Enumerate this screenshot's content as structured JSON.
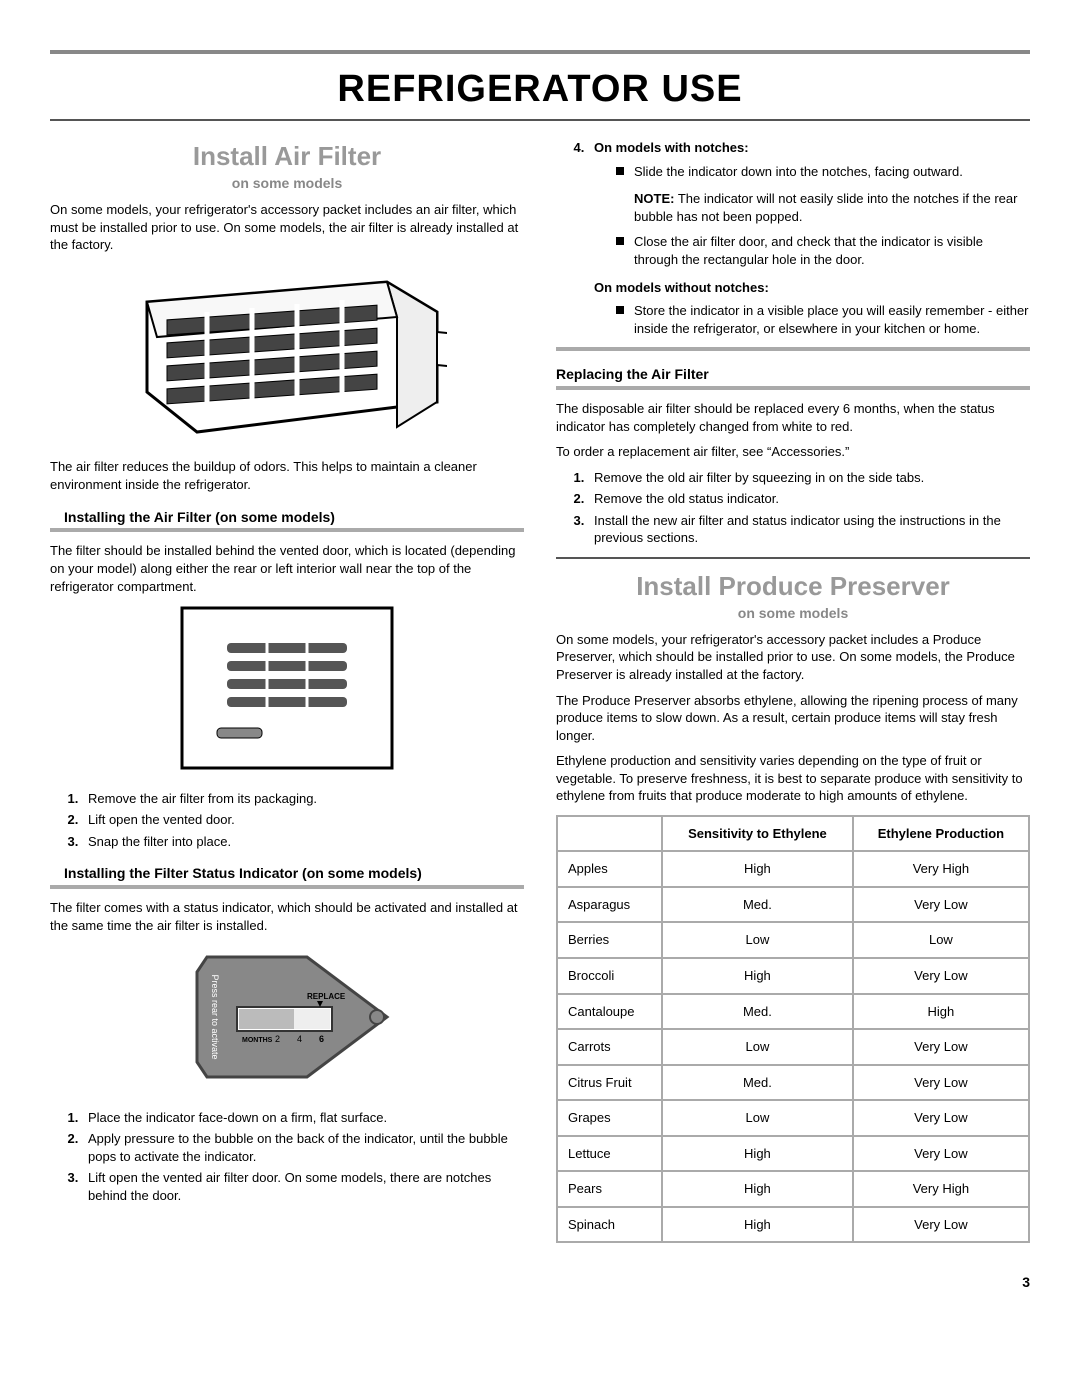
{
  "page_number": "3",
  "heading": "REFRIGERATOR USE",
  "left": {
    "h2": "Install Air Filter",
    "sub": "on some models",
    "intro": "On some models, your refrigerator's accessory packet includes an air filter, which must be installed prior to use. On some models, the air filter is already installed at the factory.",
    "caption": "The air filter reduces the buildup of odors. This helps to maintain a cleaner environment inside the refrigerator.",
    "sec1_title": "Installing the Air Filter (on some models)",
    "sec1_p": "The filter should be installed behind the vented door, which is located (depending on your model) along either the rear or left interior wall near the top of the refrigerator compartment.",
    "sec1_steps": [
      "Remove the air filter from its packaging.",
      "Lift open the vented door.",
      "Snap the filter into place."
    ],
    "sec2_title": "Installing the Filter Status Indicator (on some models)",
    "sec2_p": "The filter comes with a status indicator, which should be activated and installed at the same time the air filter is installed.",
    "indicator_svg": {
      "press_label": "Press rear to activate",
      "replace_label": "REPLACE",
      "months_label": "MONTHS",
      "months": [
        "2",
        "4",
        "6"
      ]
    },
    "sec2_steps": [
      "Place the indicator face-down on a firm, flat surface.",
      "Apply pressure to the bubble on the back of the indicator, until the bubble pops to activate the indicator.",
      "Lift open the vented air filter door. On some models, there are notches behind the door."
    ]
  },
  "right": {
    "step4_label": "On models with notches:",
    "step4_bullets": [
      "Slide the indicator down into the notches, facing outward."
    ],
    "step4_note_prefix": "NOTE:",
    "step4_note": " The indicator will not easily slide into the notches if the rear bubble has not been popped.",
    "step4_bullet2": "Close the air filter door, and check that the indicator is visible through the rectangular hole in the door.",
    "no_notch_label": "On models without notches:",
    "no_notch_bullet": "Store the indicator in a visible place you will easily remember - either inside the refrigerator, or elsewhere in your kitchen or home.",
    "replace_title": "Replacing the Air Filter",
    "replace_p1": "The disposable air filter should be replaced every 6 months, when the status indicator has completely changed from white to red.",
    "replace_p2": "To order a replacement air filter, see “Accessories.”",
    "replace_steps": [
      "Remove the old air filter by squeezing in on the side tabs.",
      "Remove the old status indicator.",
      "Install the new air filter and status indicator using the instructions in the previous sections."
    ],
    "h2": "Install Produce Preserver",
    "sub": "on some models",
    "pp_p1": "On some models, your refrigerator's accessory packet includes a Produce Preserver, which should be installed prior to use. On some models, the Produce Preserver is already installed at the factory.",
    "pp_p2": "The Produce Preserver absorbs ethylene, allowing the ripening process of many produce items to slow down. As a result, certain produce items will stay fresh longer.",
    "pp_p3": "Ethylene production and sensitivity varies depending on the type of fruit or vegetable. To preserve freshness, it is best to separate produce with sensitivity to ethylene from fruits that produce moderate to high amounts of ethylene.",
    "table": {
      "headers": [
        "",
        "Sensitivity to Ethylene",
        "Ethylene Production"
      ],
      "rows": [
        [
          "Apples",
          "High",
          "Very High"
        ],
        [
          "Asparagus",
          "Med.",
          "Very Low"
        ],
        [
          "Berries",
          "Low",
          "Low"
        ],
        [
          "Broccoli",
          "High",
          "Very Low"
        ],
        [
          "Cantaloupe",
          "Med.",
          "High"
        ],
        [
          "Carrots",
          "Low",
          "Very Low"
        ],
        [
          "Citrus Fruit",
          "Med.",
          "Very Low"
        ],
        [
          "Grapes",
          "Low",
          "Very Low"
        ],
        [
          "Lettuce",
          "High",
          "Very Low"
        ],
        [
          "Pears",
          "High",
          "Very High"
        ],
        [
          "Spinach",
          "High",
          "Very Low"
        ]
      ]
    }
  }
}
